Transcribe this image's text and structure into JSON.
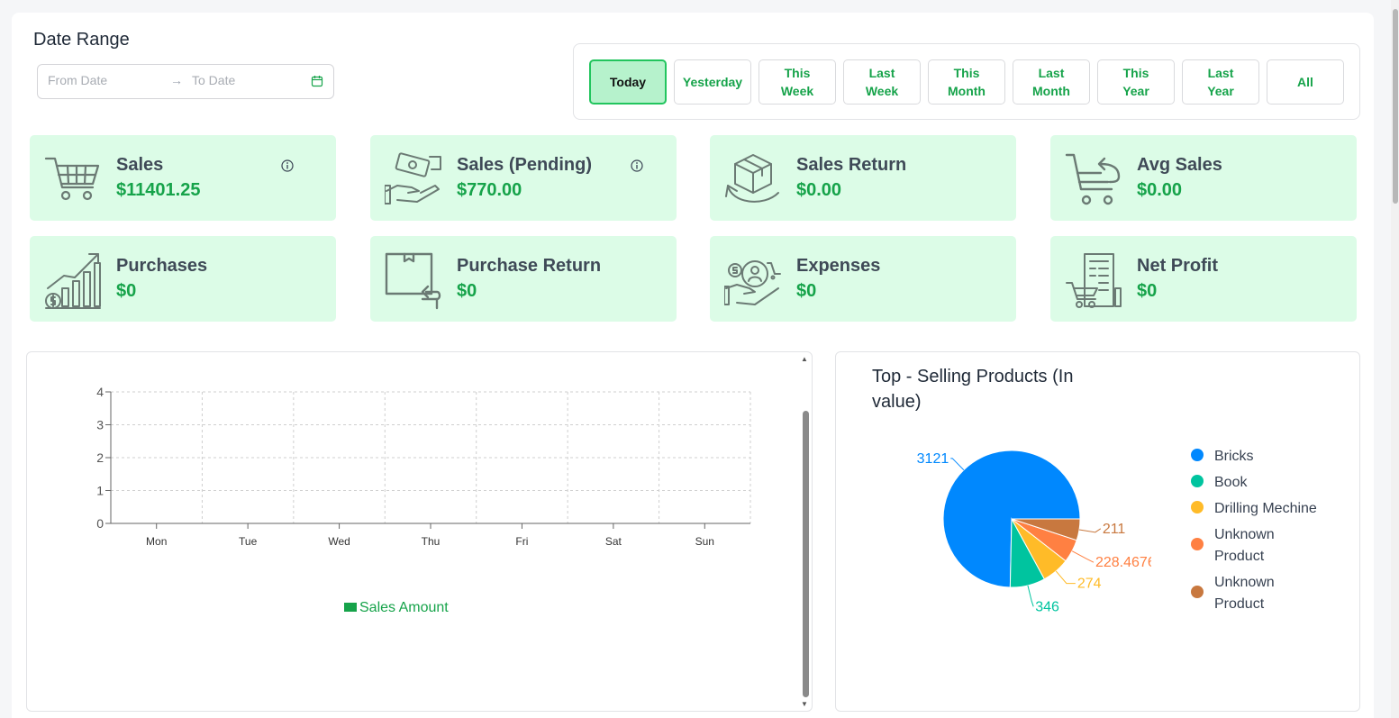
{
  "date_range": {
    "title": "Date Range",
    "from_placeholder": "From Date",
    "to_placeholder": "To Date",
    "arrow": "→"
  },
  "range_buttons": [
    {
      "label": "Today",
      "active": true
    },
    {
      "label": "Yesterday",
      "active": false
    },
    {
      "label": "This Week",
      "active": false
    },
    {
      "label": "Last Week",
      "active": false
    },
    {
      "label": "This Month",
      "active": false
    },
    {
      "label": "Last Month",
      "active": false
    },
    {
      "label": "This Year",
      "active": false
    },
    {
      "label": "Last Year",
      "active": false
    },
    {
      "label": "All",
      "active": false
    }
  ],
  "cards": [
    {
      "label": "Sales",
      "value": "$11401.25",
      "icon": "shopping-cart-icon",
      "info": true
    },
    {
      "label": "Sales (Pending)",
      "value": "$770.00",
      "icon": "cash-hand-icon",
      "info": true
    },
    {
      "label": "Sales Return",
      "value": "$0.00",
      "icon": "box-return-icon",
      "info": false
    },
    {
      "label": "Avg Sales",
      "value": "$0.00",
      "icon": "cart-return-icon",
      "info": false
    },
    {
      "label": "Purchases",
      "value": "$0",
      "icon": "growth-chart-icon",
      "info": false
    },
    {
      "label": "Purchase Return",
      "value": "$0",
      "icon": "package-return-icon",
      "info": false
    },
    {
      "label": "Expenses",
      "value": "$0",
      "icon": "expenses-icon",
      "info": false
    },
    {
      "label": "Net Profit",
      "value": "$0",
      "icon": "receipt-cart-icon",
      "info": false
    }
  ],
  "colors": {
    "accent": "#16a34a",
    "card_bg": "#dcfce7",
    "active_btn_bg": "#b6f2cc"
  },
  "chart_data": [
    {
      "type": "bar",
      "categories": [
        "Mon",
        "Tue",
        "Wed",
        "Thu",
        "Fri",
        "Sat",
        "Sun"
      ],
      "series": [
        {
          "name": "Sales Amount",
          "values": [
            0,
            0,
            0,
            0,
            0,
            0,
            0
          ],
          "color": "#16a34a"
        }
      ],
      "yticks": [
        "0",
        "1",
        "2",
        "3",
        "4"
      ],
      "ylim": [
        0,
        4
      ],
      "grid": true,
      "legend": "bottom"
    },
    {
      "type": "pie",
      "title": "Top - Selling Products (In value)",
      "slices": [
        {
          "label": "Bricks",
          "value": 3121,
          "display": "3121",
          "color": "#0088fe"
        },
        {
          "label": "Book",
          "value": 346,
          "display": "346",
          "color": "#00c49f"
        },
        {
          "label": "Drilling Mechine",
          "value": 274,
          "display": "274",
          "color": "#ffbb28"
        },
        {
          "label": "Unknown Product",
          "value": 228.4676,
          "display": "228.4676",
          "color": "#ff8042"
        },
        {
          "label": "Unknown Product",
          "value": 211,
          "display": "211",
          "color": "#c8783f"
        }
      ],
      "legend": "right"
    }
  ]
}
